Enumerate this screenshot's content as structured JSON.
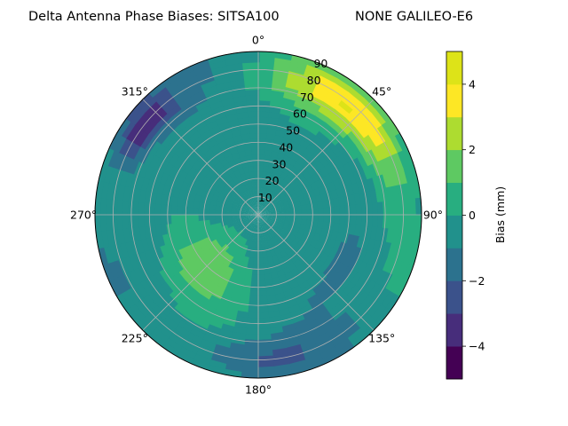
{
  "chart_data": {
    "type": "heatmap",
    "projection": "polar",
    "title": "Delta Antenna Phase Biases: SITSA100",
    "subtitle": "NONE GALILEO-E6",
    "theta_zero_location": "top",
    "theta_direction": "clockwise",
    "angle_ticks": [
      "0°",
      "45°",
      "90°",
      "135°",
      "180°",
      "225°",
      "270°",
      "315°"
    ],
    "radial_ticks": [
      "10",
      "20",
      "30",
      "40",
      "50",
      "60",
      "70",
      "80",
      "90"
    ],
    "radial_range": [
      0,
      90
    ],
    "grid": true,
    "colorbar": {
      "label": "Bias (mm)",
      "ticks": [
        "−4",
        "−2",
        "0",
        "2",
        "4"
      ],
      "range": [
        -5,
        5
      ],
      "levels": [
        -5,
        -4,
        -3,
        -2,
        -1,
        0,
        1,
        2,
        3,
        4,
        5
      ],
      "colors": [
        "#440154",
        "#472d7b",
        "#3b528b",
        "#2c728e",
        "#21918c",
        "#28ae80",
        "#5ec962",
        "#addc30",
        "#fde725",
        "#dde318"
      ]
    },
    "regions": [
      {
        "description": "North-east rim positive bias",
        "azimuth_range": [
          10,
          80
        ],
        "elevation_range": [
          65,
          90
        ],
        "bias_mm": 4
      },
      {
        "description": "Large west-south plateau",
        "azimuth_range": [
          200,
          260
        ],
        "elevation_range": [
          20,
          60
        ],
        "bias_mm": 2
      },
      {
        "description": "North-west rim negative bias",
        "azimuth_range": [
          290,
          325
        ],
        "elevation_range": [
          70,
          90
        ],
        "bias_mm": -4
      },
      {
        "description": "Central area near zero",
        "azimuth_range": [
          0,
          360
        ],
        "elevation_range": [
          0,
          30
        ],
        "bias_mm": -0.5
      },
      {
        "description": "South rim",
        "azimuth_range": [
          150,
          210
        ],
        "elevation_range": [
          70,
          90
        ],
        "bias_mm": -2
      },
      {
        "description": "East mid band",
        "azimuth_range": [
          90,
          140
        ],
        "elevation_range": [
          40,
          70
        ],
        "bias_mm": -1.5
      }
    ]
  }
}
